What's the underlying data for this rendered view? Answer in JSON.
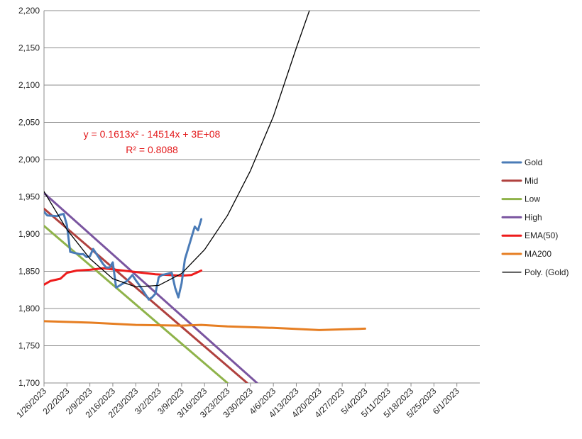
{
  "chart_data": {
    "type": "line",
    "title": "",
    "xlabel": "",
    "ylabel": "",
    "ylim": [
      1700,
      2200
    ],
    "y_ticks": [
      1700,
      1750,
      1800,
      1850,
      1900,
      1950,
      2000,
      2050,
      2100,
      2150,
      2200
    ],
    "y_tick_labels": [
      "1,700",
      "1,750",
      "1,800",
      "1,850",
      "1,900",
      "1,950",
      "2,000",
      "2,050",
      "2,100",
      "2,150",
      "2,200"
    ],
    "x_range": [
      "2023-01-26",
      "2023-06-08"
    ],
    "x_tick_labels": [
      "1/26/2023",
      "2/2/2023",
      "2/9/2023",
      "2/16/2023",
      "2/23/2023",
      "3/2/2023",
      "3/9/2023",
      "3/16/2023",
      "3/23/2023",
      "3/30/2023",
      "4/6/2023",
      "4/13/2023",
      "4/20/2023",
      "4/27/2023",
      "5/4/2023",
      "5/11/2023",
      "5/18/2023",
      "5/25/2023",
      "6/1/2023"
    ],
    "grid": "horizontal",
    "legend_position": "right",
    "series": [
      {
        "name": "Gold",
        "color": "#4a7bb7",
        "points": [
          [
            "2023-01-26",
            1930
          ],
          [
            "2023-01-27",
            1925
          ],
          [
            "2023-01-30",
            1924
          ],
          [
            "2023-01-31",
            1926
          ],
          [
            "2023-02-01",
            1927
          ],
          [
            "2023-02-02",
            1912
          ],
          [
            "2023-02-03",
            1876
          ],
          [
            "2023-02-06",
            1873
          ],
          [
            "2023-02-07",
            1873
          ],
          [
            "2023-02-08",
            1869
          ],
          [
            "2023-02-09",
            1870
          ],
          [
            "2023-02-10",
            1880
          ],
          [
            "2023-02-13",
            1860
          ],
          [
            "2023-02-14",
            1855
          ],
          [
            "2023-02-15",
            1855
          ],
          [
            "2023-02-16",
            1862
          ],
          [
            "2023-02-17",
            1828
          ],
          [
            "2023-02-20",
            1836
          ],
          [
            "2023-02-21",
            1840
          ],
          [
            "2023-02-22",
            1845
          ],
          [
            "2023-02-23",
            1838
          ],
          [
            "2023-02-24",
            1832
          ],
          [
            "2023-02-27",
            1812
          ],
          [
            "2023-02-28",
            1815
          ],
          [
            "2023-03-01",
            1820
          ],
          [
            "2023-03-02",
            1842
          ],
          [
            "2023-03-03",
            1845
          ],
          [
            "2023-03-06",
            1848
          ],
          [
            "2023-03-07",
            1828
          ],
          [
            "2023-03-08",
            1815
          ],
          [
            "2023-03-09",
            1834
          ],
          [
            "2023-03-10",
            1866
          ],
          [
            "2023-03-13",
            1910
          ],
          [
            "2023-03-14",
            1905
          ],
          [
            "2023-03-15",
            1920
          ]
        ]
      },
      {
        "name": "Mid",
        "color": "#b0413e",
        "points": [
          [
            "2023-01-26",
            1934
          ],
          [
            "2023-03-29",
            1700
          ]
        ]
      },
      {
        "name": "Low",
        "color": "#8fb34a",
        "points": [
          [
            "2023-01-26",
            1911
          ],
          [
            "2023-03-23",
            1700
          ]
        ]
      },
      {
        "name": "High",
        "color": "#7a55a0",
        "points": [
          [
            "2023-01-26",
            1955
          ],
          [
            "2023-04-01",
            1700
          ]
        ]
      },
      {
        "name": "EMA(50)",
        "color": "#ee1c1c",
        "points": [
          [
            "2023-01-26",
            1832
          ],
          [
            "2023-01-28",
            1837
          ],
          [
            "2023-01-31",
            1840
          ],
          [
            "2023-02-02",
            1848
          ],
          [
            "2023-02-05",
            1851
          ],
          [
            "2023-02-09",
            1852
          ],
          [
            "2023-02-13",
            1854
          ],
          [
            "2023-02-17",
            1852
          ],
          [
            "2023-02-21",
            1850
          ],
          [
            "2023-02-25",
            1848
          ],
          [
            "2023-03-01",
            1846
          ],
          [
            "2023-03-05",
            1845
          ],
          [
            "2023-03-09",
            1844
          ],
          [
            "2023-03-12",
            1845
          ],
          [
            "2023-03-15",
            1851
          ]
        ]
      },
      {
        "name": "MA200",
        "color": "#e67e22",
        "points": [
          [
            "2023-01-26",
            1783
          ],
          [
            "2023-02-09",
            1781
          ],
          [
            "2023-02-23",
            1778
          ],
          [
            "2023-03-09",
            1777
          ],
          [
            "2023-03-15",
            1778
          ],
          [
            "2023-03-23",
            1776
          ],
          [
            "2023-04-06",
            1774
          ],
          [
            "2023-04-20",
            1771
          ],
          [
            "2023-04-27",
            1772
          ],
          [
            "2023-05-04",
            1773
          ]
        ]
      },
      {
        "name": "Poly. (Gold)",
        "color": "#000000",
        "trendline": "polynomial-2",
        "points": [
          [
            "2023-01-26",
            1957
          ],
          [
            "2023-02-02",
            1906
          ],
          [
            "2023-02-09",
            1867
          ],
          [
            "2023-02-16",
            1840
          ],
          [
            "2023-02-23",
            1829
          ],
          [
            "2023-03-02",
            1831
          ],
          [
            "2023-03-09",
            1847
          ],
          [
            "2023-03-16",
            1879
          ],
          [
            "2023-03-23",
            1925
          ],
          [
            "2023-03-30",
            1985
          ],
          [
            "2023-04-06",
            2058
          ],
          [
            "2023-04-13",
            2150
          ],
          [
            "2023-04-17",
            2200
          ]
        ]
      }
    ],
    "annotations": [
      {
        "text": "y = 0.1613x² - 14514x + 3E+08",
        "color": "#e31a1c"
      },
      {
        "text": "R² = 0.8088",
        "color": "#e31a1c"
      }
    ]
  }
}
